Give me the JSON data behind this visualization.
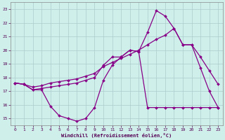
{
  "xlabel": "Windchill (Refroidissement éolien,°C)",
  "background_color": "#cff0ea",
  "grid_color": "#aacccc",
  "line_color": "#880088",
  "xlim": [
    -0.5,
    23.5
  ],
  "ylim": [
    14.5,
    23.5
  ],
  "yticks": [
    15,
    16,
    17,
    18,
    19,
    20,
    21,
    22,
    23
  ],
  "xticks": [
    0,
    1,
    2,
    3,
    4,
    5,
    6,
    7,
    8,
    9,
    10,
    11,
    12,
    13,
    14,
    15,
    16,
    17,
    18,
    19,
    20,
    21,
    22,
    23
  ],
  "s1_x": [
    0,
    1,
    2,
    3,
    4,
    5,
    6,
    7,
    8,
    9,
    10,
    11,
    12,
    13,
    14,
    15,
    16,
    17,
    18,
    19,
    20,
    21,
    22,
    23
  ],
  "s1_y": [
    17.6,
    17.5,
    17.1,
    17.1,
    15.9,
    15.2,
    15.0,
    14.8,
    15.0,
    15.8,
    17.8,
    18.9,
    19.5,
    20.0,
    19.9,
    15.8,
    15.8,
    15.8,
    15.8,
    15.8,
    15.8,
    15.8,
    15.8,
    15.8
  ],
  "s2_x": [
    0,
    1,
    2,
    3,
    4,
    5,
    6,
    7,
    8,
    9,
    10,
    11,
    12,
    13,
    14,
    15,
    16,
    17,
    18,
    19,
    20,
    21,
    22,
    23
  ],
  "s2_y": [
    17.6,
    17.5,
    17.1,
    17.2,
    17.3,
    17.4,
    17.5,
    17.6,
    17.8,
    18.0,
    18.9,
    19.5,
    19.5,
    20.0,
    19.9,
    21.3,
    22.9,
    22.5,
    21.6,
    20.4,
    20.4,
    18.7,
    17.0,
    15.8
  ],
  "s3_x": [
    0,
    1,
    2,
    3,
    4,
    5,
    6,
    7,
    8,
    9,
    10,
    11,
    12,
    13,
    14,
    15,
    16,
    17,
    18,
    19,
    20,
    21,
    22,
    23
  ],
  "s3_y": [
    17.6,
    17.5,
    17.3,
    17.4,
    17.6,
    17.7,
    17.8,
    17.9,
    18.1,
    18.3,
    18.8,
    19.1,
    19.4,
    19.7,
    20.0,
    20.4,
    20.8,
    21.1,
    21.6,
    20.4,
    20.4,
    19.5,
    18.5,
    17.5
  ]
}
